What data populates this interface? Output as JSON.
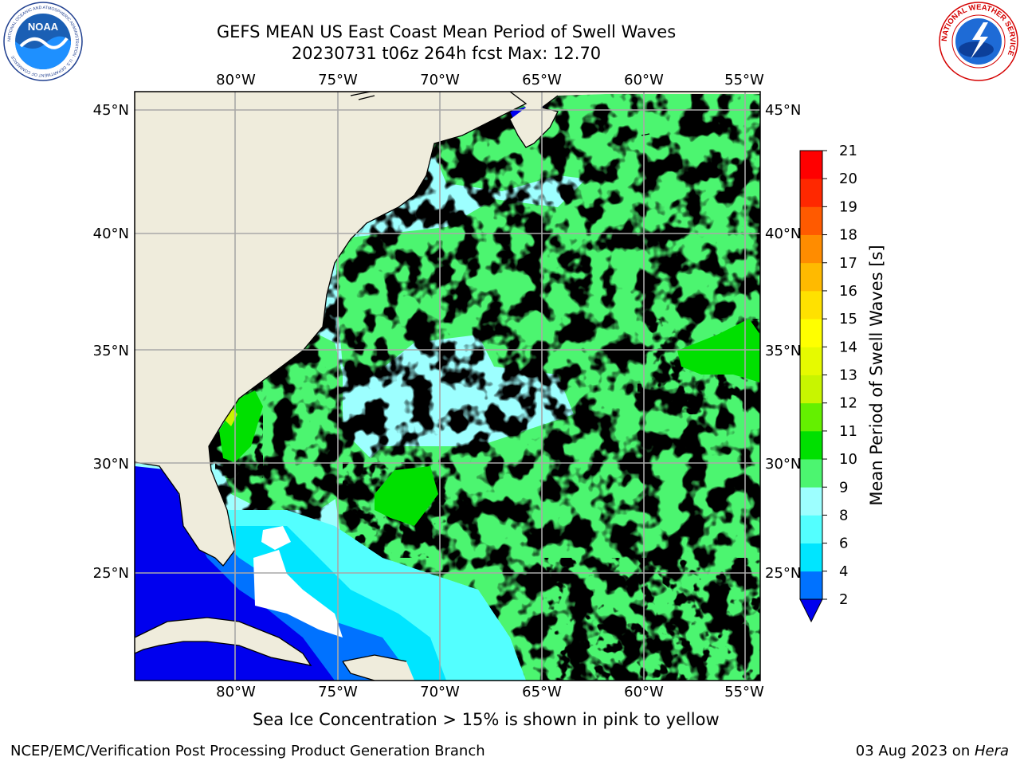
{
  "header": {
    "title_line1": "GEFS MEAN US East Coast Mean Period of Swell Waves",
    "title_line2": "20230731 t06z 264h fcst   Max: 12.70"
  },
  "logos": {
    "left": "noaa-logo",
    "left_text": "NOAA",
    "left_ring_text": "NATIONAL OCEANIC AND ATMOSPHERIC ADMINISTRATION · U.S. DEPARTMENT OF COMMERCE",
    "right": "nws-logo",
    "right_ring_text": "NATIONAL WEATHER SERVICE"
  },
  "map": {
    "projection": "plate-carree",
    "lon_range": [
      -85,
      -54.5
    ],
    "lat_range": [
      20.5,
      46
    ],
    "gridlines": true,
    "lon_ticks": [
      "80°W",
      "75°W",
      "70°W",
      "65°W",
      "60°W",
      "55°W"
    ],
    "lat_ticks": [
      "25°N",
      "30°N",
      "35°N",
      "40°N",
      "45°N"
    ],
    "colors": {
      "land": "#efecdc",
      "gridline": "#a8a8a8",
      "coastline": "#000000"
    }
  },
  "colorbar": {
    "label": "Mean Period of Swell Waves [s]",
    "ticks": [
      "2",
      "4",
      "6",
      "8",
      "9",
      "10",
      "11",
      "12",
      "13",
      "14",
      "15",
      "16",
      "17",
      "18",
      "19",
      "20",
      "21"
    ],
    "under_color": "#0000ee",
    "colors": [
      "#0072ff",
      "#00e5ff",
      "#53ffff",
      "#9dffff",
      "#4cf570",
      "#00e000",
      "#64f000",
      "#c8f500",
      "#e6fa00",
      "#ffff00",
      "#ffe100",
      "#ffba00",
      "#ff8c00",
      "#ff5a00",
      "#ff2800",
      "#ff0000"
    ]
  },
  "caption": {
    "ice_note": "Sea Ice Concentration > 15% is shown in pink to yellow"
  },
  "footer": {
    "left": "NCEP/EMC/Verification Post Processing Product Generation Branch",
    "date": "03 Aug 2023 on ",
    "host": "Hera"
  }
}
